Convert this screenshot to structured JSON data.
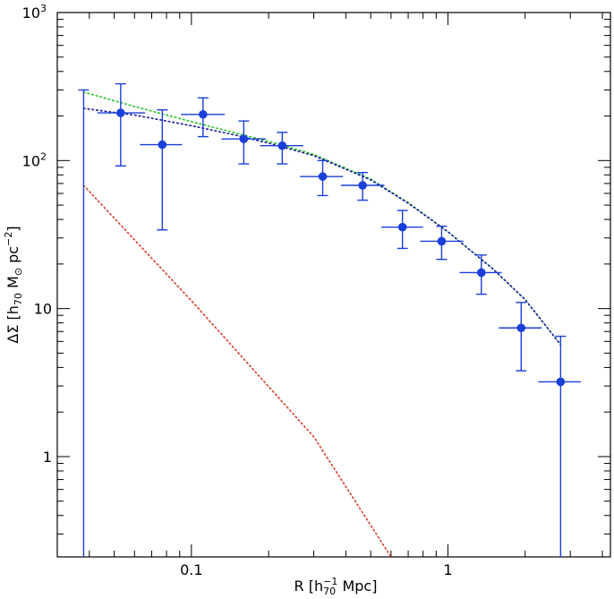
{
  "chart_data": {
    "type": "scatter",
    "xscale": "log",
    "yscale": "log",
    "xlim": [
      0.03,
      4.3
    ],
    "ylim": [
      0.21,
      1000
    ],
    "x_ticks": [
      {
        "value": 0.1,
        "label": "0.1"
      },
      {
        "value": 1,
        "label": "1"
      }
    ],
    "y_ticks": [
      {
        "value": 1,
        "label": "1"
      },
      {
        "value": 10,
        "label": "10"
      },
      {
        "value": 100,
        "label": "10",
        "exp": "2"
      },
      {
        "value": 1000,
        "label": "10",
        "exp": "3"
      }
    ],
    "xlabel": {
      "pre": "R [h",
      "sub": "70",
      "sup": "−1",
      "post": " Mpc]"
    },
    "ylabel": {
      "pre": "ΔΣ [h",
      "sub": "70",
      "mid": " M",
      "msub": "⊙",
      "post": " pc",
      "sup": "−2",
      "end": "]"
    },
    "series": [
      {
        "name": "data",
        "kind": "errorbars",
        "color": "#1a3fd9",
        "points": [
          {
            "x": 0.038,
            "y": 0.2,
            "xerr": [
              0.038,
              0.038
            ],
            "yerr": [
              0.2,
              300
            ]
          },
          {
            "x": 0.053,
            "y": 210,
            "xerr": [
              0.043,
              0.066
            ],
            "yerr": [
              92,
              330
            ]
          },
          {
            "x": 0.077,
            "y": 128,
            "xerr": [
              0.063,
              0.092
            ],
            "yerr": [
              34,
              220
            ]
          },
          {
            "x": 0.111,
            "y": 205,
            "xerr": [
              0.091,
              0.135
            ],
            "yerr": [
              145,
              265
            ]
          },
          {
            "x": 0.16,
            "y": 140,
            "xerr": [
              0.131,
              0.195
            ],
            "yerr": [
              95,
              185
            ]
          },
          {
            "x": 0.226,
            "y": 126,
            "xerr": [
              0.185,
              0.273
            ],
            "yerr": [
              95,
              155
            ]
          },
          {
            "x": 0.325,
            "y": 78,
            "xerr": [
              0.265,
              0.39
            ],
            "yerr": [
              58,
              100
            ]
          },
          {
            "x": 0.465,
            "y": 68,
            "xerr": [
              0.383,
              0.565
            ],
            "yerr": [
              54,
              83
            ]
          },
          {
            "x": 0.665,
            "y": 35.5,
            "xerr": [
              0.55,
              0.8
            ],
            "yerr": [
              25.5,
              46
            ]
          },
          {
            "x": 0.945,
            "y": 28.5,
            "xerr": [
              0.78,
              1.15
            ],
            "yerr": [
              21.5,
              36
            ]
          },
          {
            "x": 1.35,
            "y": 17.5,
            "xerr": [
              1.11,
              1.62
            ],
            "yerr": [
              12.5,
              23
            ]
          },
          {
            "x": 1.93,
            "y": 7.4,
            "xerr": [
              1.58,
              2.32
            ],
            "yerr": [
              3.8,
              11
            ]
          },
          {
            "x": 2.75,
            "y": 3.2,
            "xerr": [
              2.25,
              3.3
            ],
            "yerr": [
              0.2,
              6.5
            ]
          }
        ]
      },
      {
        "name": "model-green",
        "kind": "dotted-line",
        "color": "#22c322",
        "x": [
          0.038,
          0.06,
          0.1,
          0.15,
          0.2,
          0.3,
          0.5,
          0.7,
          1.0,
          1.5,
          2.0,
          2.75
        ],
        "y": [
          290,
          232,
          183,
          153,
          135,
          110,
          75,
          52,
          33,
          18.5,
          11.5,
          5.7
        ]
      },
      {
        "name": "model-blue",
        "kind": "dotted-line",
        "color": "#1a1aa0",
        "x": [
          0.038,
          0.06,
          0.1,
          0.15,
          0.2,
          0.3,
          0.5,
          0.7,
          1.0,
          1.5,
          2.0,
          2.75
        ],
        "y": [
          225,
          203,
          172,
          148,
          131,
          108,
          74,
          51.5,
          33,
          18.5,
          11.5,
          5.7
        ]
      },
      {
        "name": "model-red",
        "kind": "dotted-line",
        "color": "#d63a2a",
        "x": [
          0.038,
          0.1,
          0.3,
          0.6
        ],
        "y": [
          68,
          11.3,
          1.36,
          0.21
        ]
      }
    ]
  }
}
